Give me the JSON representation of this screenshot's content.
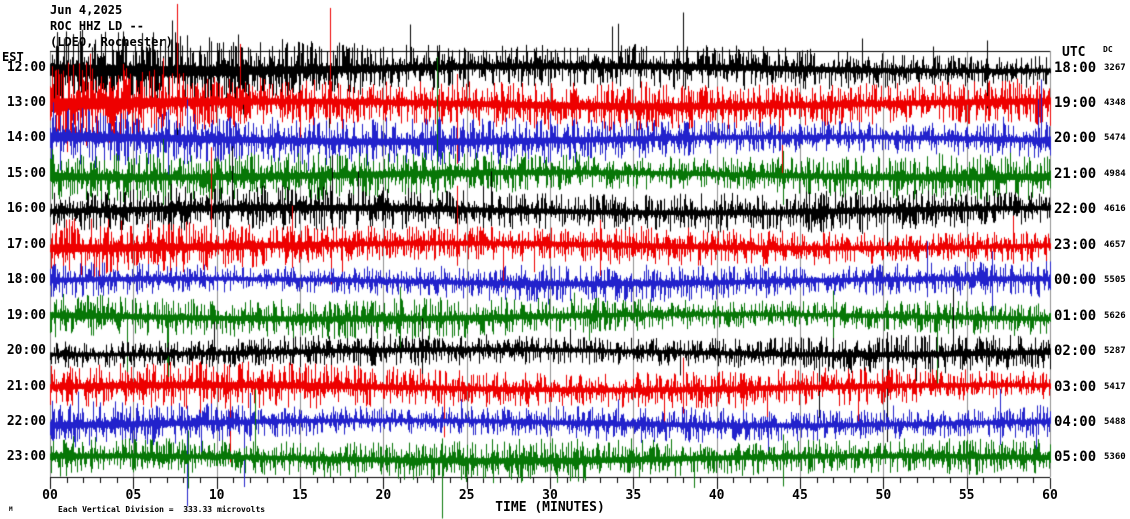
{
  "header": {
    "date_line": "Jun 4,2025",
    "station_line": "ROC HHZ LD --",
    "network_line": "(LDEO, Rochester)"
  },
  "left_axis_header": "EST",
  "right_axis_header": "UTC",
  "dc_header": "DC",
  "axis": {
    "title": "TIME (MINUTES)",
    "tick_labels": [
      "00",
      "05",
      "10",
      "15",
      "20",
      "25",
      "30",
      "35",
      "40",
      "45",
      "50",
      "55",
      "60"
    ]
  },
  "scale_note": "Each Vertical Division =  333.33 microvolts",
  "tiny_mark": "M",
  "colors": {
    "black_trace": "#000000",
    "red_trace": "#ee0000",
    "blue_trace": "#2222cc",
    "green_trace": "#077707",
    "gridline": "#909090",
    "border": "#000000",
    "background": "#ffffff"
  },
  "chart_data": {
    "type": "line",
    "subtype": "helicorder-seismogram",
    "title": "ROC HHZ LD -- Jun 4,2025 (LDEO, Rochester)",
    "xlabel": "TIME (MINUTES)",
    "x_range_minutes": [
      0,
      60
    ],
    "minutes_per_row": 60,
    "minor_tick_minutes": 1,
    "major_tick_minutes": 5,
    "grid": "vertical lines every 5 minutes",
    "vertical_division_microvolts": 333.33,
    "trace_color_cycle": [
      "#000000",
      "#ee0000",
      "#2222cc",
      "#077707"
    ],
    "noise_seed": 20250604,
    "rows": [
      {
        "est": "12:00",
        "utc": "18:00",
        "dc": "3267",
        "color": "#000000",
        "amp": 11,
        "left_boost": 1.1,
        "phase": 0.3,
        "spikes": [
          [
            7.3,
            48,
            18
          ],
          [
            7.6,
            30,
            70
          ],
          [
            11.3,
            34,
            20
          ],
          [
            14.2,
            26,
            30
          ],
          [
            33.7,
            42,
            14
          ],
          [
            38.0,
            56,
            18
          ],
          [
            48.7,
            30,
            12
          ],
          [
            56.2,
            28,
            40
          ]
        ]
      },
      {
        "est": "13:00",
        "utc": "19:00",
        "dc": "4348",
        "color": "#ee0000",
        "amp": 12,
        "left_boost": 1.3,
        "phase": 1.7,
        "spikes": [
          [
            4.4,
            40,
            16
          ],
          [
            7.6,
            100,
            24
          ],
          [
            11.4,
            60,
            20
          ],
          [
            16.8,
            96,
            20
          ],
          [
            24.4,
            30,
            60
          ]
        ]
      },
      {
        "est": "14:00",
        "utc": "20:00",
        "dc": "5474",
        "color": "#2222cc",
        "amp": 10,
        "left_boost": 0.9,
        "phase": 2.9,
        "spikes": [
          [
            7.1,
            30,
            40
          ],
          [
            8.2,
            40,
            20
          ],
          [
            30.0,
            26,
            22
          ],
          [
            59.3,
            40,
            18
          ]
        ]
      },
      {
        "est": "15:00",
        "utc": "21:00",
        "dc": "4984",
        "color": "#077707",
        "amp": 12,
        "left_boost": 0.6,
        "phase": 4.1,
        "spikes": [
          [
            6.8,
            36,
            30
          ],
          [
            23.2,
            118,
            26
          ],
          [
            44.0,
            24,
            30
          ]
        ]
      },
      {
        "est": "16:00",
        "utc": "22:00",
        "dc": "4616",
        "color": "#000000",
        "amp": 10,
        "left_boost": 0.3,
        "phase": 5.3,
        "spikes": [
          [
            16.9,
            55,
            20
          ],
          [
            26.0,
            24,
            40
          ],
          [
            50.2,
            20,
            46
          ]
        ]
      },
      {
        "est": "17:00",
        "utc": "23:00",
        "dc": "4657",
        "color": "#ee0000",
        "amp": 11,
        "left_boost": 0.3,
        "phase": 0.9,
        "spikes": [
          [
            14.5,
            40,
            22
          ],
          [
            24.4,
            60,
            20
          ],
          [
            33.0,
            26,
            30
          ],
          [
            57.8,
            30,
            18
          ]
        ]
      },
      {
        "est": "18:00",
        "utc": "00:00",
        "dc": "5505",
        "color": "#2222cc",
        "amp": 9,
        "left_boost": 0.2,
        "phase": 2.1,
        "spikes": [
          [
            52.6,
            40,
            16
          ],
          [
            56.5,
            30,
            30
          ]
        ]
      },
      {
        "est": "19:00",
        "utc": "01:00",
        "dc": "5626",
        "color": "#077707",
        "amp": 10,
        "left_boost": 0.2,
        "phase": 3.3,
        "spikes": [
          [
            21.0,
            30,
            34
          ],
          [
            47.0,
            26,
            26
          ]
        ]
      },
      {
        "est": "20:00",
        "utc": "02:00",
        "dc": "5287",
        "color": "#000000",
        "amp": 9,
        "left_boost": 0.2,
        "phase": 4.5,
        "spikes": [
          [
            22.3,
            34,
            22
          ],
          [
            50.2,
            20,
            90
          ]
        ]
      },
      {
        "est": "21:00",
        "utc": "03:00",
        "dc": "5417",
        "color": "#ee0000",
        "amp": 10,
        "left_boost": 0.2,
        "phase": 5.7,
        "spikes": [
          [
            9.0,
            26,
            30
          ],
          [
            38.0,
            30,
            26
          ]
        ]
      },
      {
        "est": "22:00",
        "utc": "04:00",
        "dc": "5488",
        "color": "#2222cc",
        "amp": 10,
        "left_boost": 0.2,
        "phase": 1.2,
        "spikes": [
          [
            12.0,
            30,
            18
          ],
          [
            57.0,
            34,
            22
          ]
        ]
      },
      {
        "est": "23:00",
        "utc": "05:00",
        "dc": "5360",
        "color": "#077707",
        "amp": 10,
        "left_boost": 0.2,
        "phase": 2.5,
        "spikes": [
          [
            8.3,
            28,
            30
          ],
          [
            23.5,
            20,
            60
          ],
          [
            44.0,
            24,
            28
          ]
        ]
      }
    ]
  }
}
